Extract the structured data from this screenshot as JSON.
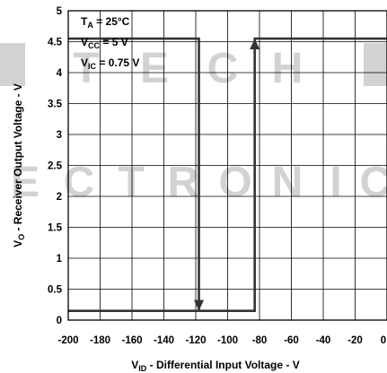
{
  "chart_data": {
    "type": "line",
    "xlabel_main": "V",
    "xlabel_sub": "ID",
    "xlabel_rest": " - Differential Input Voltage - V",
    "ylabel_main": "V",
    "ylabel_sub": "O",
    "ylabel_rest": " - Receiver Output Voltage - V",
    "xlim": [
      -200,
      0
    ],
    "ylim": [
      0,
      5
    ],
    "x_ticks": [
      "-200",
      "-180",
      "-160",
      "-140",
      "-120",
      "-100",
      "-80",
      "-60",
      "-40",
      "-20",
      "0"
    ],
    "y_ticks": [
      "0",
      "0.5",
      "1",
      "1.5",
      "2",
      "2.5",
      "3",
      "3.5",
      "4",
      "4.5",
      "5"
    ],
    "grid": true,
    "conditions": [
      {
        "main": "T",
        "sub": "A",
        "rest": " = 25°C"
      },
      {
        "main": "V",
        "sub": "CC",
        "rest": " = 5 V"
      },
      {
        "main": "V",
        "sub": "IC",
        "rest": " = 0.75 V"
      }
    ],
    "series": [
      {
        "color": "#333333",
        "description_points": [
          [
            -200,
            0.15
          ],
          [
            -83,
            0.15
          ],
          [
            -83,
            4.55
          ],
          [
            0,
            4.55
          ]
        ]
      },
      {
        "color": "#333333",
        "description_points": [
          [
            -200,
            4.55
          ],
          [
            -118,
            4.55
          ],
          [
            -118,
            0.15
          ]
        ]
      }
    ],
    "arrows": [
      {
        "x": -83,
        "from_y": 0.15,
        "to_y": 4.55,
        "direction": "up"
      },
      {
        "x": -118,
        "from_y": 4.55,
        "to_y": 0.15,
        "direction": "down"
      }
    ]
  },
  "watermark": {
    "row1": "TECH",
    "row2": [
      "E",
      "C",
      "T",
      "R",
      "O",
      "N",
      "I",
      "C"
    ],
    "color": "#d2d2d2"
  }
}
